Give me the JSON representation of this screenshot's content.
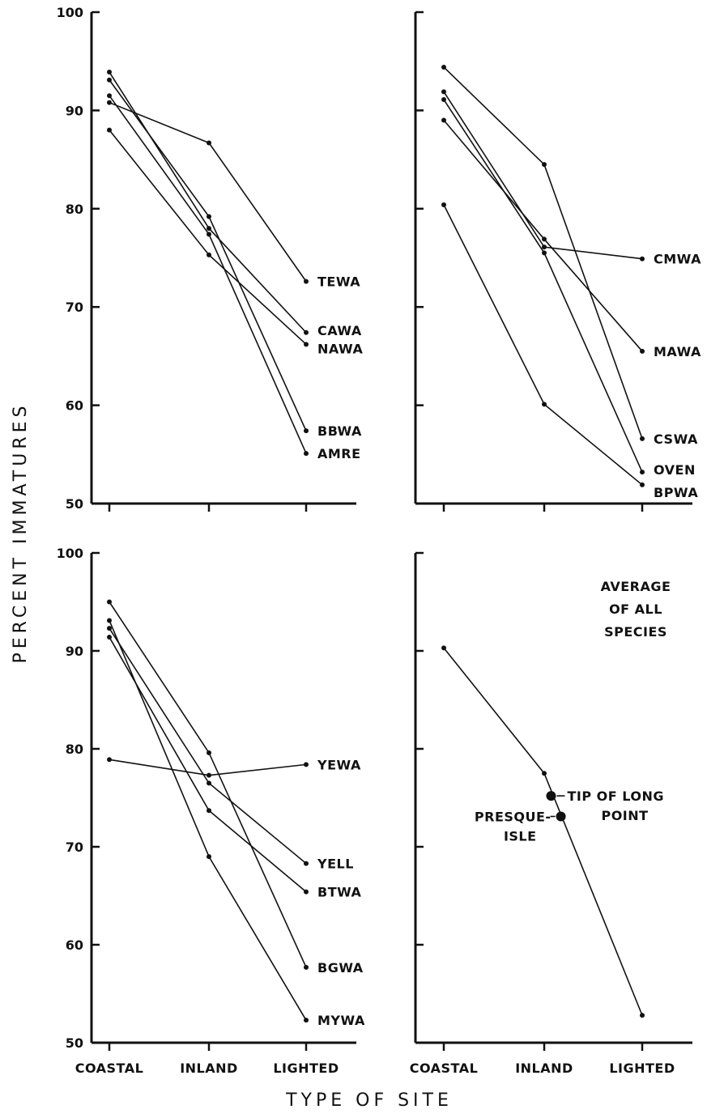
{
  "xlabel": "TYPE OF SITE",
  "ylabel": "PERCENT IMMATURES",
  "chart_data": [
    {
      "type": "line",
      "panel": "top-left",
      "categories": [
        "COASTAL",
        "INLAND",
        "LIGHTED"
      ],
      "ylim": [
        50,
        100
      ],
      "yticks": [
        50,
        60,
        70,
        80,
        90,
        100
      ],
      "series": [
        {
          "name": "TEWA",
          "values": [
            90.8,
            86.7,
            72.6
          ]
        },
        {
          "name": "CAWA",
          "values": [
            93.9,
            78.0,
            67.4
          ]
        },
        {
          "name": "NAWA",
          "values": [
            88.0,
            75.3,
            66.2
          ]
        },
        {
          "name": "BBWA",
          "values": [
            93.1,
            79.2,
            57.4
          ]
        },
        {
          "name": "AMRE",
          "values": [
            91.5,
            77.4,
            55.1
          ]
        }
      ]
    },
    {
      "type": "line",
      "panel": "top-right",
      "categories": [
        "COASTAL",
        "INLAND",
        "LIGHTED"
      ],
      "ylim": [
        50,
        100
      ],
      "yticks": [
        50,
        60,
        70,
        80,
        90,
        100
      ],
      "series": [
        {
          "name": "CMWA",
          "values": [
            91.9,
            76.1,
            74.9
          ]
        },
        {
          "name": "MAWA",
          "values": [
            89.0,
            76.9,
            65.5
          ]
        },
        {
          "name": "CSWA",
          "values": [
            94.4,
            84.5,
            56.6
          ]
        },
        {
          "name": "OVEN",
          "values": [
            91.1,
            75.5,
            53.2
          ]
        },
        {
          "name": "BPWA",
          "values": [
            80.4,
            60.1,
            51.9
          ]
        }
      ]
    },
    {
      "type": "line",
      "panel": "bottom-left",
      "categories": [
        "COASTAL",
        "INLAND",
        "LIGHTED"
      ],
      "ylim": [
        50,
        100
      ],
      "yticks": [
        50,
        60,
        70,
        80,
        90,
        100
      ],
      "series": [
        {
          "name": "YEWA",
          "values": [
            78.9,
            77.3,
            78.4
          ]
        },
        {
          "name": "YELL",
          "values": [
            92.3,
            76.5,
            68.3
          ]
        },
        {
          "name": "BTWA",
          "values": [
            91.4,
            73.7,
            65.4
          ]
        },
        {
          "name": "BGWA",
          "values": [
            95.0,
            79.6,
            57.7
          ]
        },
        {
          "name": "MYWA",
          "values": [
            93.1,
            69.0,
            52.3
          ]
        }
      ]
    },
    {
      "type": "line",
      "panel": "bottom-right",
      "categories": [
        "COASTAL",
        "INLAND",
        "LIGHTED"
      ],
      "ylim": [
        50,
        100
      ],
      "yticks": [
        50,
        60,
        70,
        80,
        90,
        100
      ],
      "title_lines": [
        "AVERAGE",
        "OF ALL",
        "SPECIES"
      ],
      "series": [
        {
          "values": [
            90.3,
            77.5,
            52.8
          ]
        }
      ],
      "annotations": [
        {
          "lines": [
            "TIP OF LONG",
            "POINT"
          ],
          "x_pos": 1.07,
          "value": 75.2
        },
        {
          "lines": [
            "PRESQUE-",
            "ISLE"
          ],
          "x_pos": 1.17,
          "value": 73.1
        }
      ]
    }
  ]
}
